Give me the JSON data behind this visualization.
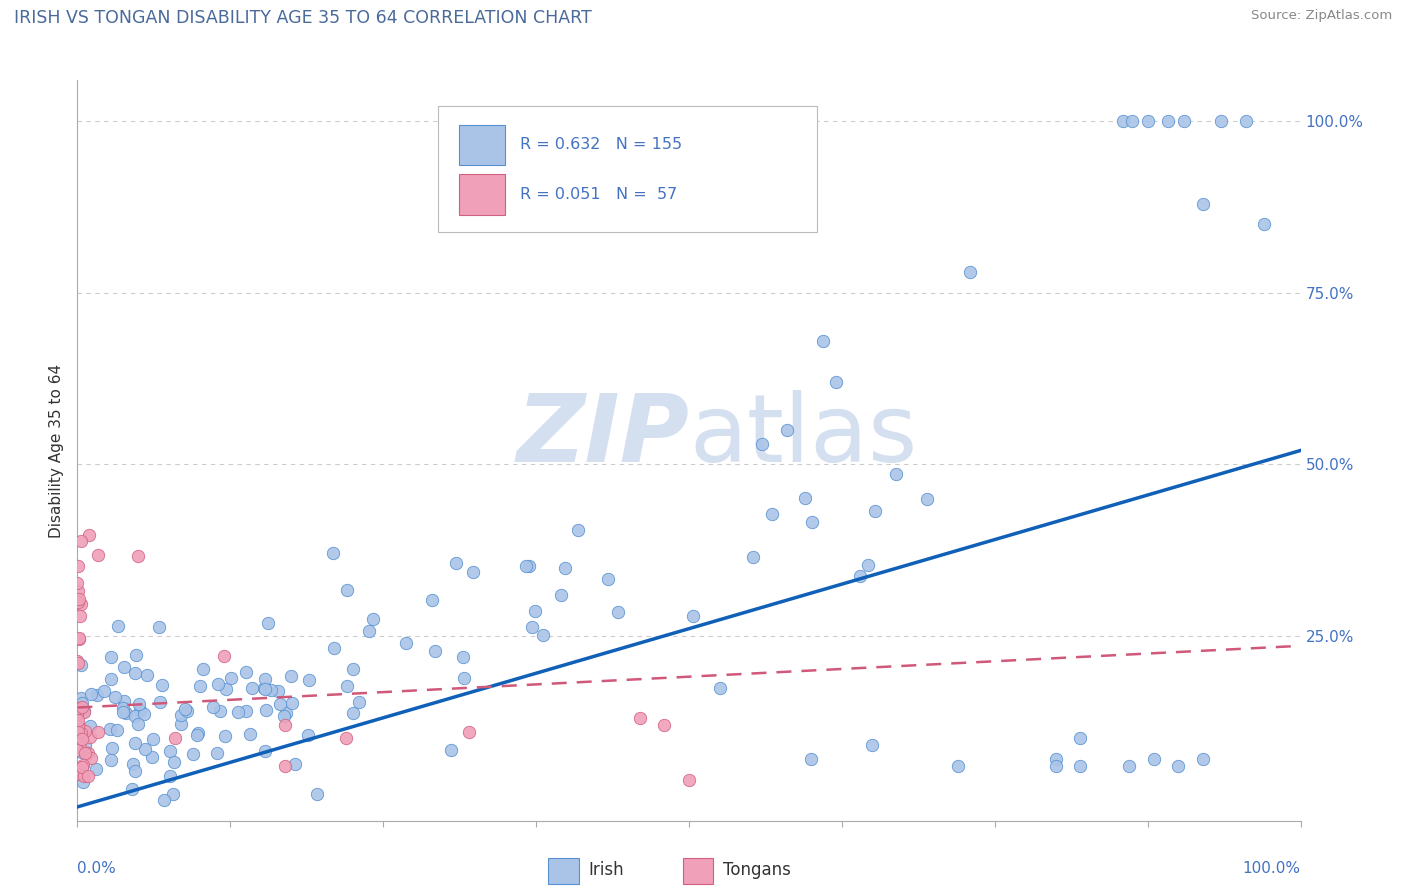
{
  "title": "IRISH VS TONGAN DISABILITY AGE 35 TO 64 CORRELATION CHART",
  "source": "Source: ZipAtlas.com",
  "ylabel": "Disability Age 35 to 64",
  "irish_R": 0.632,
  "irish_N": 155,
  "tongan_R": 0.051,
  "tongan_N": 57,
  "irish_color": "#aac4e8",
  "tongan_color": "#f0a0b8",
  "irish_edge_color": "#5590d0",
  "tongan_edge_color": "#d06080",
  "irish_line_color": "#1060b8",
  "tongan_line_color": "#d05878",
  "title_color": "#4a6a9a",
  "tick_color": "#4472c4",
  "source_color": "#888888",
  "background_color": "#ffffff",
  "grid_color": "#cccccc",
  "watermark_color": "#d4dff0",
  "irish_line_slope": 0.52,
  "irish_line_intercept": 0.0,
  "tongan_line_slope": 0.09,
  "tongan_line_intercept": 0.145
}
